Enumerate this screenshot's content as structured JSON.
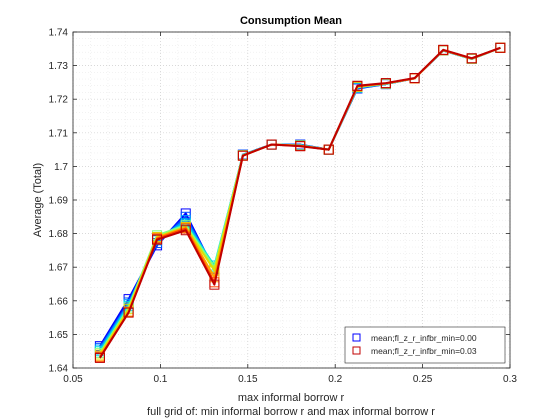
{
  "chart_data": {
    "type": "line",
    "title": "Consumption Mean",
    "xlabel": "max informal borrow r",
    "xlabel2": "full grid of: min informal borrow r and max informal borrow r",
    "ylabel": "Average (Total)",
    "xlim": [
      0.05,
      0.3
    ],
    "ylim": [
      1.64,
      1.74
    ],
    "xticks": [
      0.05,
      0.1,
      0.15,
      0.2,
      0.25,
      0.3
    ],
    "xtick_labels": [
      "0.05",
      "0.1",
      "0.15",
      "0.2",
      "0.25",
      "0.3"
    ],
    "yticks": [
      1.64,
      1.65,
      1.66,
      1.67,
      1.68,
      1.69,
      1.7,
      1.71,
      1.72,
      1.73,
      1.74
    ],
    "ytick_labels": [
      "1.64",
      "1.65",
      "1.66",
      "1.67",
      "1.68",
      "1.69",
      "1.7",
      "1.71",
      "1.72",
      "1.73",
      "1.74"
    ],
    "grid": true,
    "legend_position": "bottom-right",
    "x": [
      0.0654,
      0.0818,
      0.0981,
      0.1145,
      0.1309,
      0.1472,
      0.1636,
      0.18,
      0.1963,
      0.2127,
      0.229,
      0.2454,
      0.2618,
      0.2781,
      0.2945
    ],
    "series": [
      {
        "name": "mean;fl_z_r_infbr_min=0.00",
        "color": "#0000ff",
        "legend": true,
        "values": [
          1.6465,
          1.6605,
          1.6765,
          1.686,
          1.669,
          1.7035,
          1.7065,
          1.7065,
          1.705,
          1.7232,
          1.7245,
          1.7262,
          1.7345,
          1.732,
          1.7353
        ]
      },
      {
        "name": "",
        "color": "#0050ff",
        "legend": false,
        "values": [
          1.646,
          1.6595,
          1.6772,
          1.685,
          1.6695,
          1.7035,
          1.7065,
          1.7064,
          1.705,
          1.7233,
          1.7245,
          1.7262,
          1.7345,
          1.732,
          1.7353
        ]
      },
      {
        "name": "",
        "color": "#00a0ff",
        "legend": false,
        "values": [
          1.6455,
          1.659,
          1.678,
          1.684,
          1.67,
          1.7034,
          1.7065,
          1.7064,
          1.705,
          1.7234,
          1.7245,
          1.7262,
          1.7345,
          1.732,
          1.7353
        ]
      },
      {
        "name": "",
        "color": "#00e0e0",
        "legend": false,
        "values": [
          1.645,
          1.6585,
          1.679,
          1.683,
          1.6705,
          1.7034,
          1.7065,
          1.7063,
          1.705,
          1.7235,
          1.7246,
          1.7262,
          1.7345,
          1.732,
          1.7353
        ]
      },
      {
        "name": "",
        "color": "#80ff80",
        "legend": false,
        "values": [
          1.6445,
          1.658,
          1.6795,
          1.6825,
          1.67,
          1.7033,
          1.7065,
          1.7062,
          1.705,
          1.7236,
          1.7246,
          1.7262,
          1.7346,
          1.732,
          1.7353
        ]
      },
      {
        "name": "",
        "color": "#e0e000",
        "legend": false,
        "values": [
          1.644,
          1.6575,
          1.679,
          1.682,
          1.669,
          1.7033,
          1.7065,
          1.7062,
          1.705,
          1.7237,
          1.7247,
          1.7262,
          1.7346,
          1.7321,
          1.7353
        ]
      },
      {
        "name": "",
        "color": "#ffa000",
        "legend": false,
        "values": [
          1.6435,
          1.6568,
          1.6788,
          1.6818,
          1.667,
          1.7032,
          1.7065,
          1.7061,
          1.705,
          1.7238,
          1.7247,
          1.7262,
          1.7346,
          1.7321,
          1.7353
        ]
      },
      {
        "name": "",
        "color": "#ff4000",
        "legend": false,
        "values": [
          1.6432,
          1.6565,
          1.6785,
          1.6815,
          1.6655,
          1.7032,
          1.7065,
          1.7061,
          1.705,
          1.7239,
          1.7247,
          1.7262,
          1.7346,
          1.7321,
          1.7353
        ]
      },
      {
        "name": "mean;fl_z_r_infbr_min=0.03",
        "color": "#c00000",
        "legend": true,
        "values": [
          1.643,
          1.6565,
          1.6782,
          1.681,
          1.6648,
          1.7032,
          1.7065,
          1.706,
          1.705,
          1.724,
          1.7248,
          1.7263,
          1.7347,
          1.7322,
          1.7353
        ]
      }
    ]
  }
}
